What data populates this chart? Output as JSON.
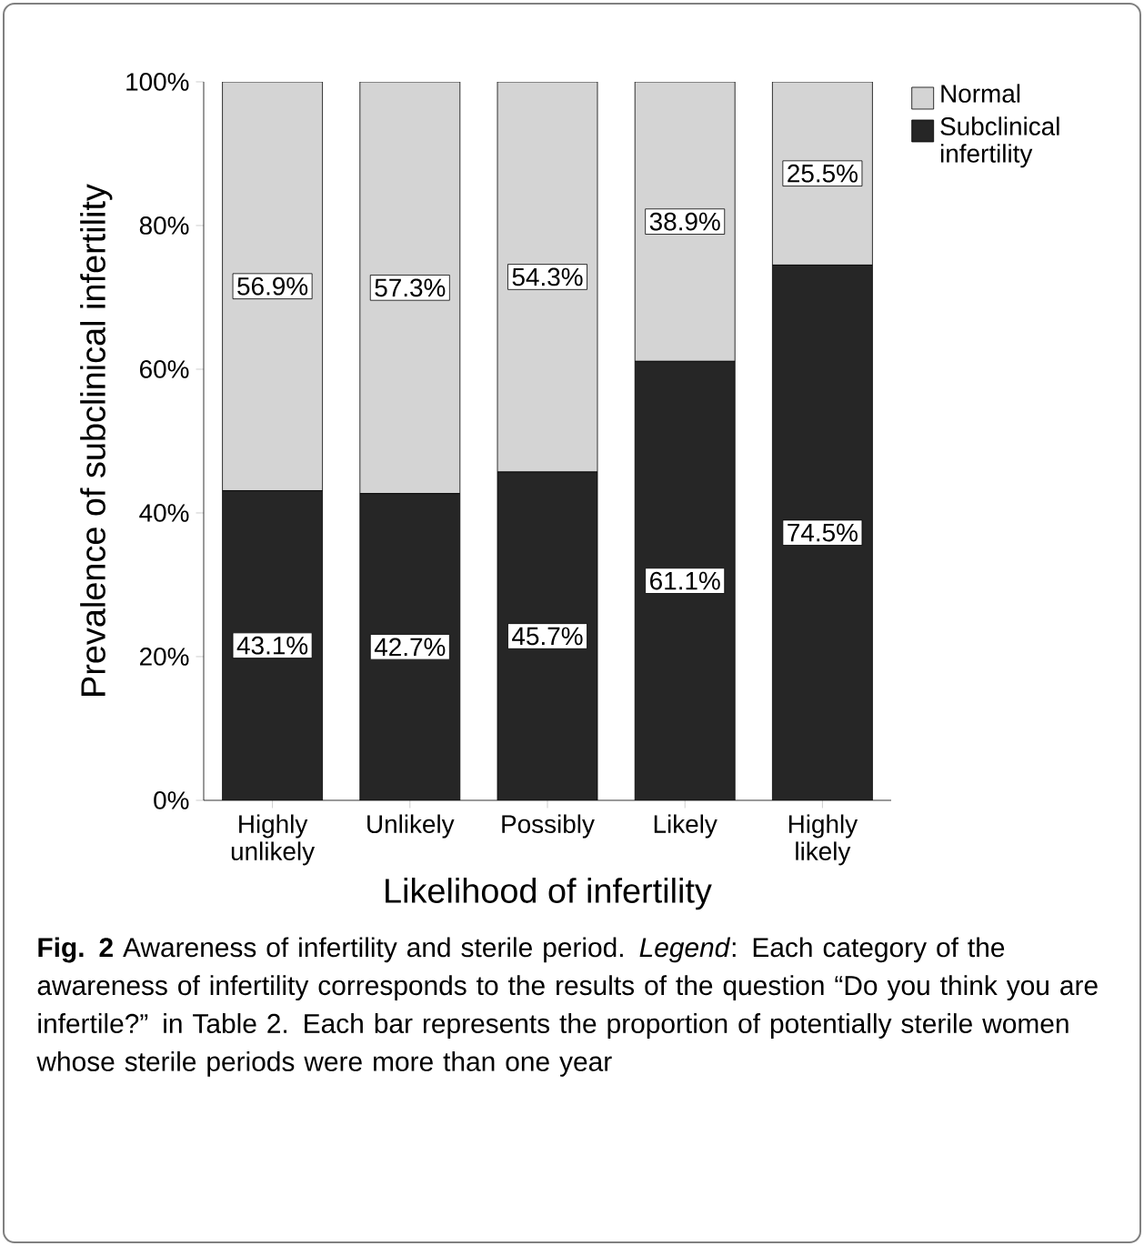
{
  "chart_data": {
    "type": "bar",
    "stacked": true,
    "categories": [
      "Highly unlikely",
      "Unlikely",
      "Possibly",
      "Likely",
      "Highly likely"
    ],
    "series": [
      {
        "name": "Subclinical infertility",
        "color": "#262626",
        "values": [
          43.1,
          42.7,
          45.7,
          61.1,
          74.5
        ],
        "value_labels": [
          "43.1%",
          "42.7%",
          "45.7%",
          "61.1%",
          "74.5%"
        ]
      },
      {
        "name": "Normal",
        "color": "#d4d4d4",
        "values": [
          56.9,
          57.3,
          54.3,
          38.9,
          25.5
        ],
        "value_labels": [
          "56.9%",
          "57.3%",
          "54.3%",
          "38.9%",
          "25.5%"
        ]
      }
    ],
    "xlabel": "Likelihood of infertility",
    "ylabel": "Prevalence of subclinical infertility",
    "ylim": [
      0,
      100
    ],
    "yticks": [
      {
        "value": 0,
        "label": "0%"
      },
      {
        "value": 20,
        "label": "20%"
      },
      {
        "value": 40,
        "label": "40%"
      },
      {
        "value": 60,
        "label": "60%"
      },
      {
        "value": 80,
        "label": "80%"
      },
      {
        "value": 100,
        "label": "100%"
      }
    ],
    "legend": "top right",
    "annotations": [
      "**Fig. 2** Awareness of infertility and sterile period. *Legend*: Each category of the awareness of infertility corresponds to the results of the question “Do you think you are infertile?” in Table 2. Each bar represents the proportion of potentially sterile women whose sterile periods were more than one year"
    ]
  }
}
